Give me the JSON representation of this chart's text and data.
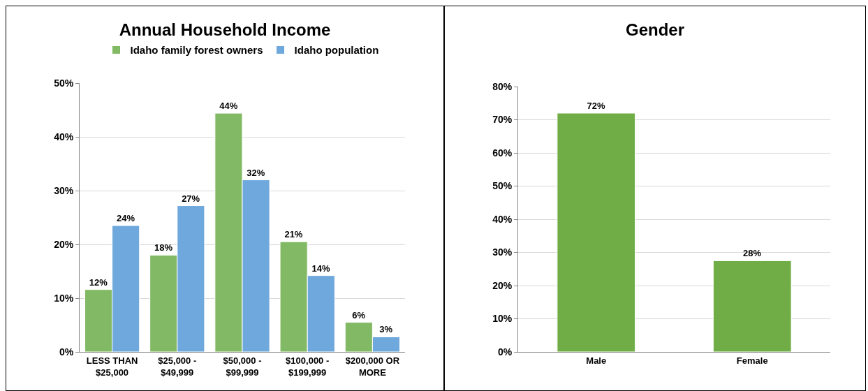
{
  "chart_data": [
    {
      "type": "bar",
      "title": "Annual Household Income",
      "categories": [
        "LESS THAN\n$25,000",
        "$25,000 -\n$49,999",
        "$50,000 -\n$99,999",
        "$100,000 -\n$199,999",
        "$200,000 OR\nMORE"
      ],
      "series": [
        {
          "name": "Idaho family forest owners",
          "color": "#82b964",
          "values": [
            11.6,
            18,
            44.4,
            20.5,
            5.5
          ],
          "value_labels": [
            "12%",
            "18%",
            "44%",
            "21%",
            "6%"
          ]
        },
        {
          "name": "Idaho population",
          "color": "#6fa8dc",
          "values": [
            23.5,
            27.2,
            32,
            14.2,
            2.8
          ],
          "value_labels": [
            "24%",
            "27%",
            "32%",
            "14%",
            "3%"
          ]
        }
      ],
      "ylim": [
        0,
        50
      ],
      "yticks": [
        {
          "value": 0,
          "label": "0%"
        },
        {
          "value": 10,
          "label": "10%"
        },
        {
          "value": 20,
          "label": "20%"
        },
        {
          "value": 30,
          "label": "30%"
        },
        {
          "value": 40,
          "label": "40%"
        },
        {
          "value": 50,
          "label": "50%"
        }
      ],
      "grid": "y",
      "legend": "top"
    },
    {
      "type": "bar",
      "title": "Gender",
      "categories": [
        "Male",
        "Female"
      ],
      "series": [
        {
          "color": "#70ad47",
          "values": [
            72,
            27.5
          ],
          "value_labels": [
            "72%",
            "28%"
          ]
        }
      ],
      "ylim": [
        0,
        80
      ],
      "yticks": [
        {
          "value": 0,
          "label": "0%"
        },
        {
          "value": 10,
          "label": "10%"
        },
        {
          "value": 20,
          "label": "20%"
        },
        {
          "value": 30,
          "label": "30%"
        },
        {
          "value": 40,
          "label": "40%"
        },
        {
          "value": 50,
          "label": "50%"
        },
        {
          "value": 60,
          "label": "60%"
        },
        {
          "value": 70,
          "label": "70%"
        },
        {
          "value": 80,
          "label": "80%"
        }
      ],
      "grid": "y"
    }
  ]
}
